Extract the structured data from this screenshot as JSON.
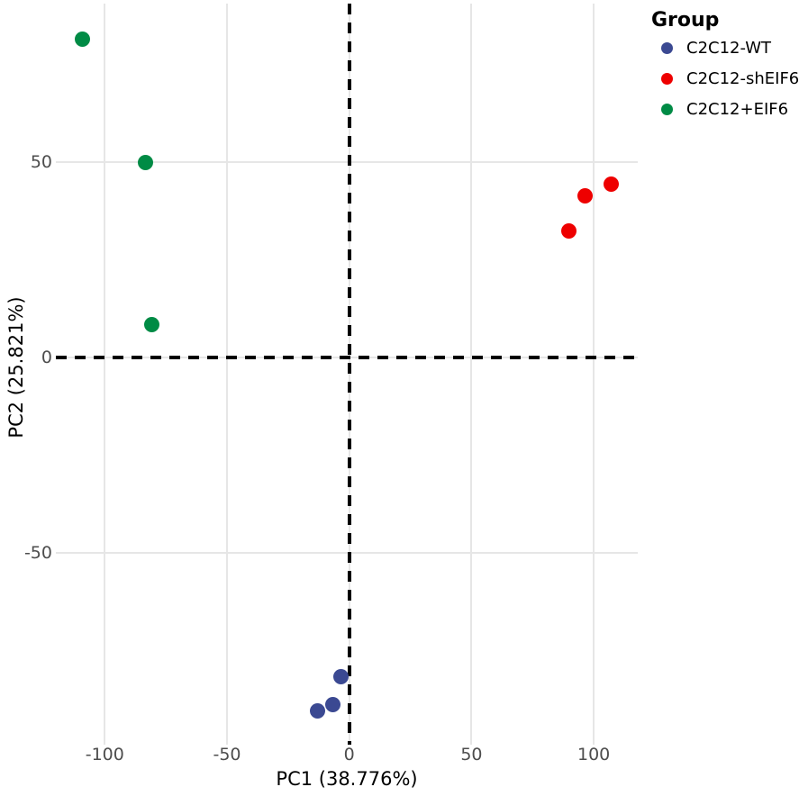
{
  "chart_data": {
    "type": "scatter",
    "title": "",
    "xlabel": "PC1 (38.776%)",
    "ylabel": "PC2 (25.821%)",
    "xlim": [
      -120,
      118
    ],
    "ylim": [
      -99,
      90.6
    ],
    "x_ticks": [
      -100,
      -50,
      0,
      50,
      100
    ],
    "y_ticks": [
      -50,
      0,
      50
    ],
    "grid": {
      "visible": true,
      "color": "#e6e6e6",
      "minor": false
    },
    "reference_lines": [
      {
        "orientation": "horizontal",
        "value": 0,
        "style": "dashed",
        "color": "#000000"
      },
      {
        "orientation": "vertical",
        "value": 0,
        "style": "dashed",
        "color": "#000000"
      }
    ],
    "legend": {
      "title": "Group",
      "position": "top-right"
    },
    "series": [
      {
        "name": "C2C12-WT",
        "color": "#3B4992",
        "points": [
          [
            -12.9,
            -90.3
          ],
          [
            -6.6,
            -88.7
          ],
          [
            -3.3,
            -81.6
          ]
        ]
      },
      {
        "name": "C2C12-shEIF6",
        "color": "#EE0000",
        "points": [
          [
            89.9,
            32.5
          ],
          [
            96.5,
            41.5
          ],
          [
            107.2,
            44.5
          ]
        ]
      },
      {
        "name": "C2C12+EIF6",
        "color": "#008B45",
        "points": [
          [
            -109.1,
            81.6
          ],
          [
            -83.3,
            50.0
          ],
          [
            -80.7,
            8.5
          ]
        ]
      }
    ]
  },
  "colors": {
    "background": "#FFFFFF",
    "gridline": "#E6E6E6",
    "tick_label": "#4D4D4D",
    "axis_title": "#000000",
    "reference_line": "#000000"
  }
}
